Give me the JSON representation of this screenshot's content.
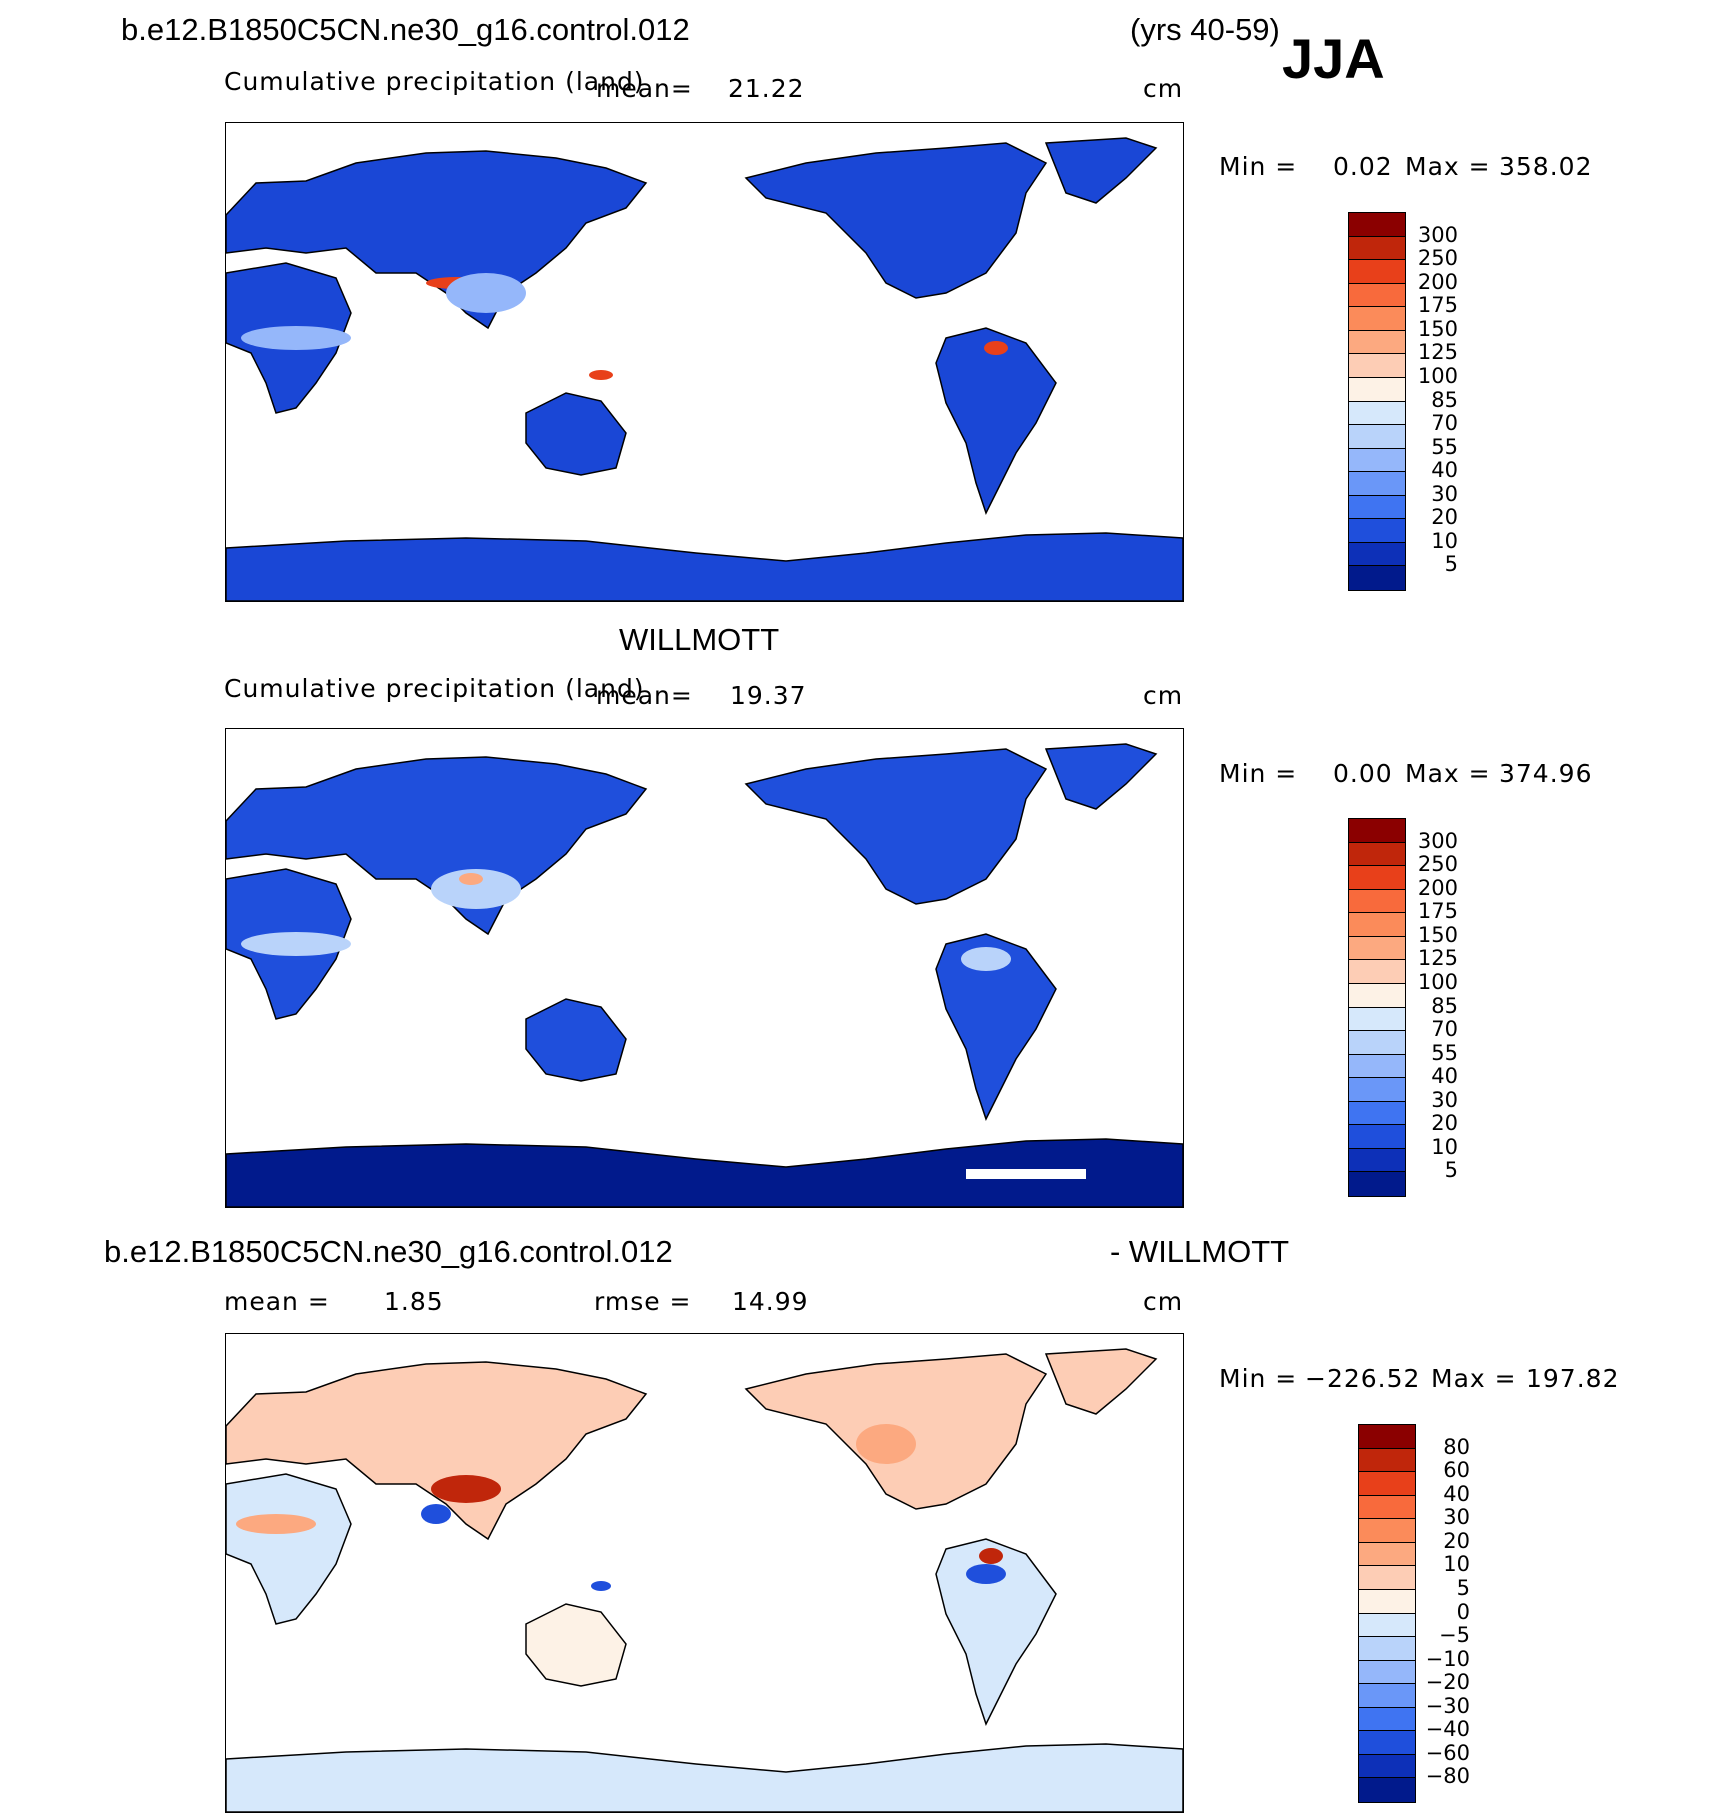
{
  "header": {
    "case_name": "b.e12.B1850C5CN.ne30_g16.control.012",
    "years": "(yrs 40-59)",
    "season": "JJA"
  },
  "panels": [
    {
      "title": "",
      "subtitle": "Cumulative precipitation (land)",
      "mean_label": "mean=",
      "mean_value": "21.22",
      "units": "cm",
      "min_label": "Min =",
      "min_value": "0.02",
      "max_label": "Max =",
      "max_value": "358.02"
    },
    {
      "title": "WILLMOTT",
      "subtitle": "Cumulative precipitation (land)",
      "mean_label": "mean=",
      "mean_value": "19.37",
      "units": "cm",
      "min_label": "Min =",
      "min_value": "0.00",
      "max_label": "Max =",
      "max_value": "374.96"
    },
    {
      "title_left": "b.e12.B1850C5CN.ne30_g16.control.012",
      "title_right": "- WILLMOTT",
      "mean_label": "mean =",
      "mean_value": "1.85",
      "rmse_label": "rmse =",
      "rmse_value": "14.99",
      "units": "cm",
      "min_label": "Min =",
      "min_value": "−226.52",
      "max_label": "Max =",
      "max_value": "197.82"
    }
  ],
  "colorbar_precip": {
    "labels": [
      "300",
      "250",
      "200",
      "175",
      "150",
      "125",
      "100",
      "85",
      "70",
      "55",
      "40",
      "30",
      "20",
      "10",
      "5"
    ],
    "colors": [
      "#8b0000",
      "#c0260b",
      "#e8401a",
      "#f86a3c",
      "#fb8b5a",
      "#fca980",
      "#fdcdb5",
      "#fdf2e6",
      "#d6e8fb",
      "#b9d3fa",
      "#95b7fa",
      "#6a97f8",
      "#3f74f2",
      "#1f4fdc",
      "#0d30b8",
      "#011a8c"
    ]
  },
  "colorbar_diff": {
    "labels": [
      "80",
      "60",
      "40",
      "30",
      "20",
      "10",
      "5",
      "0",
      "−5",
      "−10",
      "−20",
      "−30",
      "−40",
      "−60",
      "−80"
    ],
    "colors": [
      "#8b0000",
      "#c0260b",
      "#e8401a",
      "#f86a3c",
      "#fb8b5a",
      "#fca980",
      "#fdcdb5",
      "#fdf2e6",
      "#d6e8fb",
      "#b9d3fa",
      "#95b7fa",
      "#6a97f8",
      "#3f74f2",
      "#1f4fdc",
      "#0d30b8",
      "#011a8c"
    ]
  }
}
